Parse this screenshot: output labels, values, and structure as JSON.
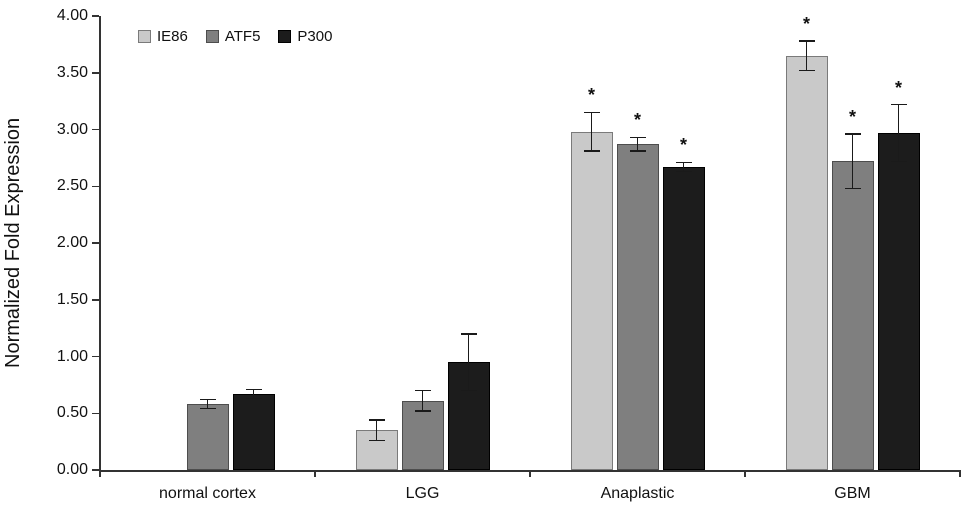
{
  "figure": {
    "background": "#ffffff"
  },
  "chart_data": {
    "type": "bar",
    "title": "",
    "ylabel": "Normalized Fold Expression",
    "xlabel": "",
    "ylim": [
      0,
      4
    ],
    "ytick_labels": [
      "0.00",
      "0.50",
      "1.00",
      "1.50",
      "2.00",
      "2.50",
      "3.00",
      "3.50",
      "4.00"
    ],
    "ytick_step": 0.5,
    "grid": false,
    "legend_position": "top-left",
    "significance_marker": "*",
    "axis_color": "#333333",
    "error_bar_color": "#1a1a1a",
    "categories": [
      "normal cortex",
      "LGG",
      "Anaplastic",
      "GBM"
    ],
    "series": [
      {
        "name": "IE86",
        "fill": "#c9c9c9",
        "border": "#7a7a7a",
        "values": [
          0,
          0.35,
          2.98,
          3.65
        ],
        "errors": [
          0,
          0.09,
          0.17,
          0.13
        ],
        "significant": [
          false,
          false,
          true,
          true
        ]
      },
      {
        "name": "ATF5",
        "fill": "#7f7f7f",
        "border": "#4d4d4d",
        "values": [
          0.58,
          0.61,
          2.87,
          2.72
        ],
        "errors": [
          0.04,
          0.09,
          0.06,
          0.24
        ],
        "significant": [
          false,
          false,
          true,
          true
        ]
      },
      {
        "name": "P300",
        "fill": "#1c1c1c",
        "border": "#000000",
        "values": [
          0.67,
          0.95,
          2.67,
          2.97
        ],
        "errors": [
          0.04,
          0.25,
          0.04,
          0.25
        ],
        "significant": [
          false,
          false,
          true,
          true
        ]
      }
    ]
  }
}
